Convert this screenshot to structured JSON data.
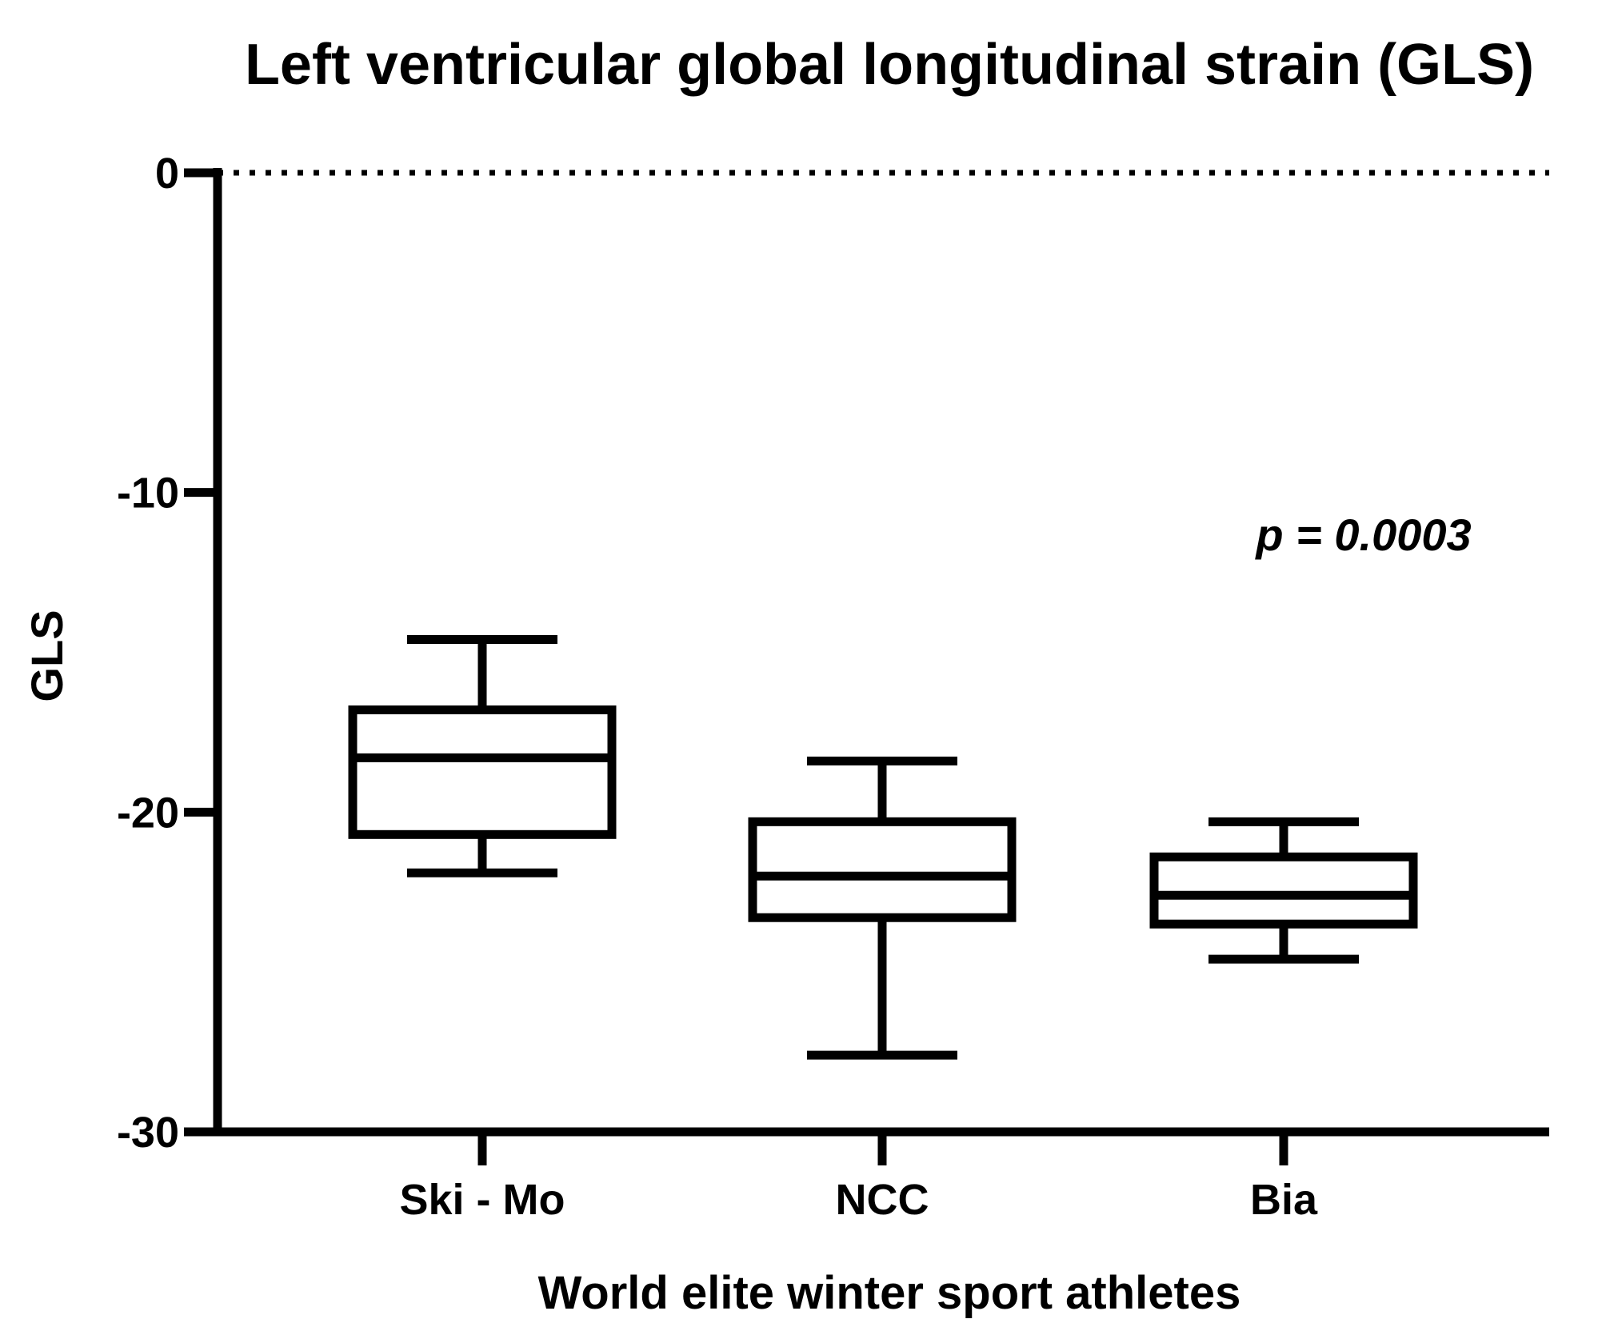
{
  "chart_data": {
    "type": "box",
    "title": "Left ventricular global longitudinal strain (GLS)",
    "xlabel": "World elite winter sport athletes",
    "ylabel": "GLS",
    "ylim": [
      -30,
      0
    ],
    "yticks": [
      0,
      -10,
      -20,
      -30
    ],
    "ytick_labels": [
      "0",
      "-10",
      "-20",
      "-30"
    ],
    "reference_line": {
      "y": 0,
      "style": "dotted"
    },
    "annotation": "p = 0.0003",
    "categories": [
      "Ski - Mo",
      "NCC",
      "Bia"
    ],
    "boxes": [
      {
        "category": "Ski - Mo",
        "whisker_high": -14.6,
        "q3": -16.8,
        "median": -18.3,
        "q1": -20.7,
        "whisker_low": -21.9
      },
      {
        "category": "NCC",
        "whisker_high": -18.4,
        "q3": -20.3,
        "median": -22.0,
        "q1": -23.3,
        "whisker_low": -27.6
      },
      {
        "category": "Bia",
        "whisker_high": -20.3,
        "q3": -21.4,
        "median": -22.6,
        "q1": -23.5,
        "whisker_low": -24.6
      }
    ],
    "grid": false,
    "colors": {
      "stroke": "#000000",
      "background": "#ffffff"
    }
  }
}
